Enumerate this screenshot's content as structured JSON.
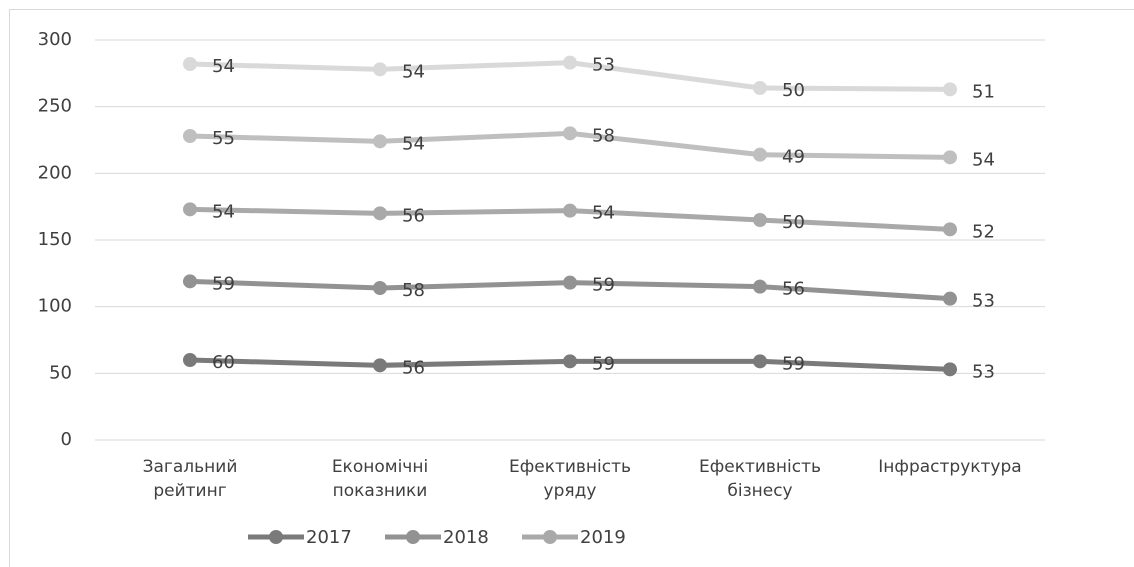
{
  "chart_data": {
    "type": "line",
    "stacked": true,
    "categories": [
      "Загальний рейтинг",
      "Економічні показники",
      "Ефективність уряду",
      "Ефективність бізнесу",
      "Інфраструктура"
    ],
    "series": [
      {
        "name": "2017",
        "color": "#7a7a7a",
        "values": [
          60,
          56,
          59,
          59,
          53
        ]
      },
      {
        "name": "2018",
        "color": "#929292",
        "values": [
          59,
          58,
          59,
          56,
          53
        ]
      },
      {
        "name": "2019",
        "color": "#a9a9a9",
        "values": [
          54,
          56,
          54,
          50,
          52
        ]
      },
      {
        "color": "#bfbfbf",
        "values": [
          55,
          54,
          58,
          49,
          54
        ]
      },
      {
        "color": "#d9d9d9",
        "values": [
          54,
          54,
          53,
          50,
          51
        ]
      }
    ],
    "ylim": [
      0,
      300
    ],
    "yticks": [
      0,
      50,
      100,
      150,
      200,
      250,
      300
    ],
    "grid": true,
    "legend": "bottom"
  }
}
